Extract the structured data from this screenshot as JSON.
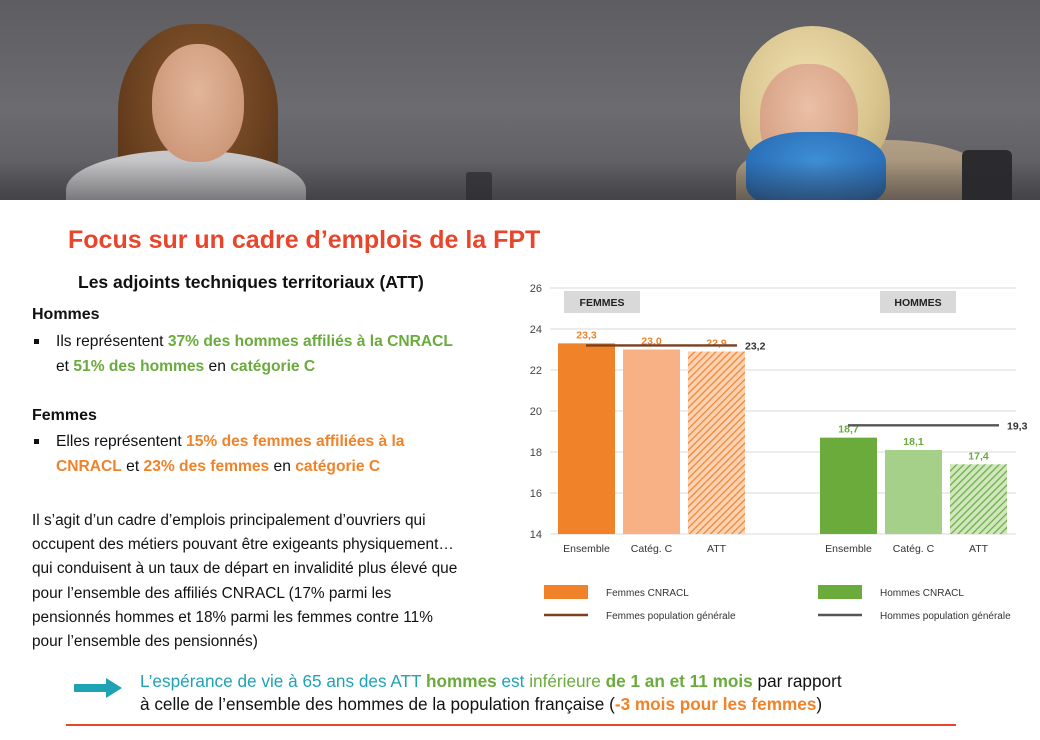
{
  "slide": {
    "title": "Focus sur un cadre d’emplois de la FPT",
    "subtitle": "Les adjoints techniques territoriaux (ATT)",
    "hommes": {
      "heading": "Hommes",
      "l1_a": "Ils représentent ",
      "l1_b": "37% des hommes affiliés à la CNRACL",
      "l2_a": "et ",
      "l2_b": "51% des hommes",
      "l2_c": " en ",
      "l2_d": "catégorie C"
    },
    "femmes": {
      "heading": "Femmes",
      "l1_a": "Elles représentent ",
      "l1_b": "15% des femmes affiliées à la",
      "l2_a": "CNRACL",
      "l2_b": " et ",
      "l2_c": "23% des femmes",
      "l2_d": " en ",
      "l2_e": "catégorie C"
    },
    "paragraph": [
      "Il s’agit d’un cadre d’emplois principalement d’ouvriers qui",
      "occupent des métiers pouvant être exigeants physiquement…",
      "qui conduisent à un taux de départ en invalidité plus élevé que",
      "pour l’ensemble des affiliés CNRACL (17% parmi les",
      "pensionnés hommes et 18% parmi les femmes contre 11%",
      "pour l’ensemble des pensionnés)"
    ],
    "conclusion": {
      "a": "L’espérance de vie à 65 ans des ATT ",
      "b": "hommes",
      "c": " est ",
      "d": "inférieure",
      "e": " ",
      "f": "de 1 an et 11 mois",
      "g": " par rapport",
      "h": "à celle de l’ensemble des hommes de la population française (",
      "i": "-3 mois pour les femmes",
      "j": ")"
    },
    "colors": {
      "title": "#e8452b",
      "green": "#6aab3c",
      "orange": "#f0832a",
      "teal": "#1ea3b5"
    }
  },
  "chart_data": {
    "type": "bar",
    "ylim": [
      14,
      26
    ],
    "yticks": [
      "14",
      "16",
      "18",
      "20",
      "22",
      "24",
      "26"
    ],
    "groups": [
      {
        "label": "FEMMES",
        "categories": [
          "Ensemble",
          "Catég. C",
          "ATT"
        ],
        "values": [
          23.3,
          23.0,
          22.9
        ],
        "value_labels": [
          "23,3",
          "23,0",
          "22,9"
        ],
        "colors": [
          "#f0832a",
          "#f8b184",
          "#f0832a"
        ],
        "hatched": [
          false,
          false,
          true
        ],
        "reference": {
          "value": 23.2,
          "label": "23,2",
          "color": "#7a3f1e"
        }
      },
      {
        "label": "HOMMES",
        "categories": [
          "Ensemble",
          "Catég. C",
          "ATT"
        ],
        "values": [
          18.7,
          18.1,
          17.4
        ],
        "value_labels": [
          "18,7",
          "18,1",
          "17,4"
        ],
        "colors": [
          "#6aab3c",
          "#a5d08a",
          "#6aab3c"
        ],
        "hatched": [
          false,
          false,
          true
        ],
        "reference": {
          "value": 19.3,
          "label": "19,3",
          "color": "#555555"
        }
      }
    ],
    "legend": [
      {
        "label": "Femmes CNRACL",
        "kind": "box",
        "color": "#f0832a"
      },
      {
        "label": "Femmes population générale",
        "kind": "line",
        "color": "#7a3f1e"
      },
      {
        "label": "Hommes CNRACL",
        "kind": "box",
        "color": "#6aab3c"
      },
      {
        "label": "Hommes population générale",
        "kind": "line",
        "color": "#555555"
      }
    ],
    "grid": true
  }
}
